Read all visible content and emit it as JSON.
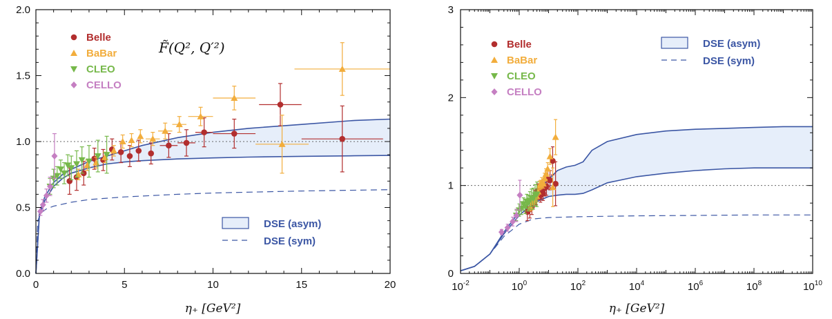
{
  "colors": {
    "belle": "#b22e2e",
    "babar": "#f2ad3c",
    "cleo": "#76b84a",
    "cello": "#c57fc2",
    "dse": "#3b56a4",
    "band_fill": "#e6eefa"
  },
  "chart_data": [
    {
      "type": "scatter",
      "title": "F̃(Q², Q′²)",
      "xlabel": "η₊ [GeV²]",
      "ylabel": "",
      "xlim": [
        0,
        20
      ],
      "ylim": [
        0,
        2
      ],
      "x_ticks": [
        "0",
        "5",
        "10",
        "15",
        "20"
      ],
      "y_ticks": [
        "0.0",
        "0.5",
        "1.0",
        "1.5",
        "2.0"
      ],
      "reference_line": 1.0,
      "legend_markers": [
        "Belle",
        "BaBar",
        "CLEO",
        "CELLO"
      ],
      "legend_lines": [
        "DSE (asym)",
        "DSE (sym)"
      ],
      "series": [
        {
          "name": "Belle",
          "points": [
            {
              "x": 1.9,
              "y": 0.7,
              "xerr": 0,
              "yerr": 0.1
            },
            {
              "x": 2.3,
              "y": 0.73,
              "xerr": 0,
              "yerr": 0.1
            },
            {
              "x": 2.7,
              "y": 0.76,
              "xerr": 0,
              "yerr": 0.09
            },
            {
              "x": 3.3,
              "y": 0.87,
              "xerr": 0,
              "yerr": 0.08
            },
            {
              "x": 3.8,
              "y": 0.86,
              "xerr": 0,
              "yerr": 0.08
            },
            {
              "x": 4.3,
              "y": 0.94,
              "xerr": 0,
              "yerr": 0.08
            },
            {
              "x": 4.8,
              "y": 0.92,
              "xerr": 0,
              "yerr": 0.08
            },
            {
              "x": 5.3,
              "y": 0.89,
              "xerr": 0,
              "yerr": 0.08
            },
            {
              "x": 5.8,
              "y": 0.93,
              "xerr": 0,
              "yerr": 0.08
            },
            {
              "x": 6.5,
              "y": 0.91,
              "xerr": 0,
              "yerr": 0.08
            },
            {
              "x": 7.5,
              "y": 0.97,
              "xerr": 0.5,
              "yerr": 0.09
            },
            {
              "x": 8.5,
              "y": 0.99,
              "xerr": 0.5,
              "yerr": 0.1
            },
            {
              "x": 9.5,
              "y": 1.07,
              "xerr": 0.5,
              "yerr": 0.11
            },
            {
              "x": 11.2,
              "y": 1.06,
              "xerr": 1.2,
              "yerr": 0.11
            },
            {
              "x": 13.8,
              "y": 1.28,
              "xerr": 1.2,
              "yerr": 0.16
            },
            {
              "x": 17.3,
              "y": 1.02,
              "xerr": 2.3,
              "yerr": 0.25
            }
          ]
        },
        {
          "name": "BaBar",
          "points": [
            {
              "x": 2.4,
              "y": 0.75,
              "xerr": 0,
              "yerr": 0.04
            },
            {
              "x": 2.9,
              "y": 0.82,
              "xerr": 0,
              "yerr": 0.04
            },
            {
              "x": 3.4,
              "y": 0.84,
              "xerr": 0,
              "yerr": 0.04
            },
            {
              "x": 3.9,
              "y": 0.88,
              "xerr": 0,
              "yerr": 0.04
            },
            {
              "x": 4.4,
              "y": 0.93,
              "xerr": 0,
              "yerr": 0.04
            },
            {
              "x": 4.9,
              "y": 1.0,
              "xerr": 0,
              "yerr": 0.05
            },
            {
              "x": 5.4,
              "y": 1.01,
              "xerr": 0,
              "yerr": 0.05
            },
            {
              "x": 5.9,
              "y": 1.04,
              "xerr": 0,
              "yerr": 0.05
            },
            {
              "x": 6.6,
              "y": 1.02,
              "xerr": 0.4,
              "yerr": 0.05
            },
            {
              "x": 7.3,
              "y": 1.08,
              "xerr": 0.4,
              "yerr": 0.06
            },
            {
              "x": 8.1,
              "y": 1.13,
              "xerr": 0.4,
              "yerr": 0.06
            },
            {
              "x": 9.3,
              "y": 1.19,
              "xerr": 0.7,
              "yerr": 0.07
            },
            {
              "x": 11.2,
              "y": 1.33,
              "xerr": 1.2,
              "yerr": 0.09
            },
            {
              "x": 13.9,
              "y": 0.98,
              "xerr": 1.5,
              "yerr": 0.22
            },
            {
              "x": 17.3,
              "y": 1.55,
              "xerr": 2.7,
              "yerr": 0.2
            }
          ]
        },
        {
          "name": "CLEO",
          "points": [
            {
              "x": 0.8,
              "y": 0.66,
              "xerr": 0,
              "yerr": 0.06
            },
            {
              "x": 1.0,
              "y": 0.72,
              "xerr": 0,
              "yerr": 0.07
            },
            {
              "x": 1.2,
              "y": 0.74,
              "xerr": 0,
              "yerr": 0.07
            },
            {
              "x": 1.4,
              "y": 0.79,
              "xerr": 0,
              "yerr": 0.07
            },
            {
              "x": 1.6,
              "y": 0.76,
              "xerr": 0,
              "yerr": 0.08
            },
            {
              "x": 1.8,
              "y": 0.82,
              "xerr": 0,
              "yerr": 0.08
            },
            {
              "x": 2.0,
              "y": 0.8,
              "xerr": 0,
              "yerr": 0.09
            },
            {
              "x": 2.3,
              "y": 0.83,
              "xerr": 0,
              "yerr": 0.1
            },
            {
              "x": 2.6,
              "y": 0.86,
              "xerr": 0,
              "yerr": 0.1
            },
            {
              "x": 3.0,
              "y": 0.85,
              "xerr": 0,
              "yerr": 0.12
            },
            {
              "x": 3.5,
              "y": 0.89,
              "xerr": 0,
              "yerr": 0.12
            },
            {
              "x": 4.0,
              "y": 0.9,
              "xerr": 0,
              "yerr": 0.14
            }
          ]
        },
        {
          "name": "CELLO",
          "points": [
            {
              "x": 0.25,
              "y": 0.47,
              "xerr": 0,
              "yerr": 0.03
            },
            {
              "x": 0.4,
              "y": 0.52,
              "xerr": 0,
              "yerr": 0.04
            },
            {
              "x": 0.6,
              "y": 0.59,
              "xerr": 0,
              "yerr": 0.05
            },
            {
              "x": 0.8,
              "y": 0.66,
              "xerr": 0,
              "yerr": 0.07
            },
            {
              "x": 1.05,
              "y": 0.89,
              "xerr": 0,
              "yerr": 0.17
            }
          ]
        }
      ],
      "dse_asym": {
        "x": [
          0.0,
          0.2,
          0.5,
          1,
          1.5,
          2,
          3,
          4,
          5,
          6,
          8,
          10,
          12,
          15,
          18,
          20
        ],
        "y_lower": [
          0.0,
          0.44,
          0.55,
          0.66,
          0.72,
          0.76,
          0.8,
          0.83,
          0.845,
          0.855,
          0.868,
          0.876,
          0.882,
          0.888,
          0.892,
          0.895
        ],
        "y_upper": [
          0.0,
          0.46,
          0.58,
          0.69,
          0.75,
          0.79,
          0.85,
          0.89,
          0.93,
          0.97,
          1.03,
          1.07,
          1.1,
          1.13,
          1.16,
          1.17
        ]
      },
      "dse_sym": {
        "x": [
          0.0,
          0.1,
          0.3,
          0.6,
          1,
          2,
          3,
          5,
          8,
          10,
          15,
          20
        ],
        "y": [
          0.0,
          0.4,
          0.46,
          0.49,
          0.51,
          0.54,
          0.56,
          0.58,
          0.6,
          0.61,
          0.625,
          0.635
        ]
      }
    },
    {
      "type": "scatter",
      "title": "",
      "xlabel": "η₊ [GeV²]",
      "ylabel": "",
      "xscale": "log",
      "xlim": [
        0.01,
        10000000000
      ],
      "ylim": [
        0,
        3
      ],
      "x_ticks": [
        {
          "base": "10",
          "exp": "-2"
        },
        {
          "base": "10",
          "exp": "0"
        },
        {
          "base": "10",
          "exp": "2"
        },
        {
          "base": "10",
          "exp": "4"
        },
        {
          "base": "10",
          "exp": "6"
        },
        {
          "base": "10",
          "exp": "8"
        },
        {
          "base": "10",
          "exp": "10"
        }
      ],
      "y_ticks": [
        "0",
        "1",
        "2",
        "3"
      ],
      "reference_line": 1.0,
      "legend_markers": [
        "Belle",
        "BaBar",
        "CLEO",
        "CELLO"
      ],
      "legend_lines": [
        "DSE (asym)",
        "DSE (sym)"
      ],
      "dse_asym": {
        "x": [
          0.01,
          0.03,
          0.1,
          0.3,
          1,
          3,
          10,
          20,
          40,
          80,
          150,
          300,
          1000,
          10000,
          100000,
          1000000,
          10000000,
          100000000,
          1000000000,
          10000000000
        ],
        "y_lower": [
          0.03,
          0.08,
          0.22,
          0.45,
          0.66,
          0.8,
          0.875,
          0.89,
          0.9,
          0.9,
          0.91,
          0.95,
          1.03,
          1.1,
          1.14,
          1.17,
          1.19,
          1.2,
          1.2,
          1.2
        ],
        "y_upper": [
          0.03,
          0.08,
          0.22,
          0.47,
          0.7,
          0.87,
          1.07,
          1.17,
          1.21,
          1.23,
          1.27,
          1.4,
          1.5,
          1.58,
          1.62,
          1.64,
          1.65,
          1.66,
          1.67,
          1.67
        ]
      },
      "dse_sym": {
        "x": [
          0.01,
          0.03,
          0.1,
          0.3,
          1,
          3,
          10,
          100,
          1000,
          10000,
          1000000,
          100000000,
          10000000000
        ],
        "y": [
          0.03,
          0.08,
          0.22,
          0.42,
          0.56,
          0.62,
          0.635,
          0.645,
          0.65,
          0.655,
          0.66,
          0.665,
          0.665
        ]
      }
    }
  ]
}
